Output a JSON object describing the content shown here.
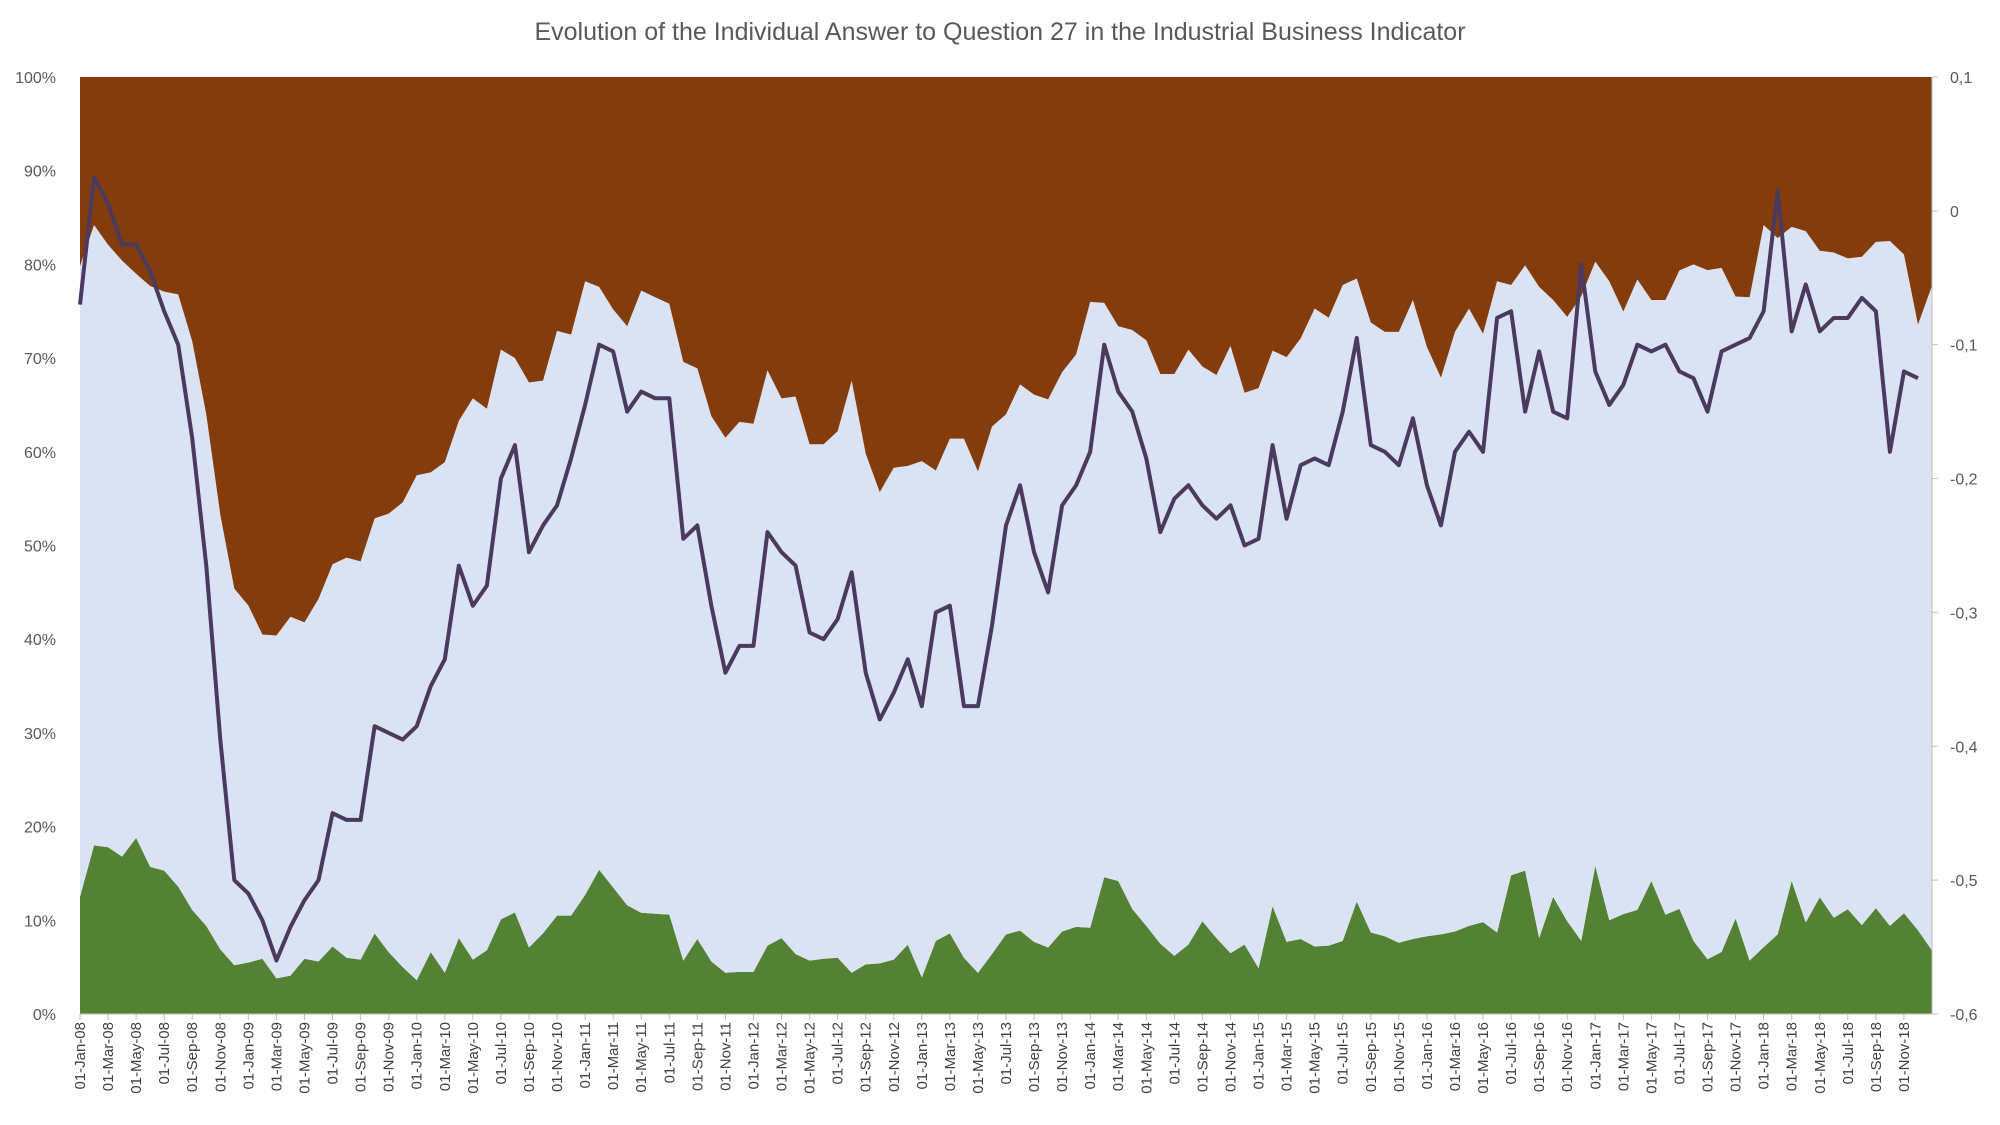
{
  "chart_data": {
    "type": "area",
    "title": "Evolution of the Individual Answer to Question 27 in the Industrial Business Indicator",
    "x_start": "01-Jan-08",
    "x_step": "month",
    "x_tick_labels": [
      "01-Jan-08",
      "01-Mar-08",
      "01-May-08",
      "01-Jul-08",
      "01-Sep-08",
      "01-Nov-08",
      "01-Jan-09",
      "01-Mar-09",
      "01-May-09",
      "01-Jul-09",
      "01-Sep-09",
      "01-Nov-09",
      "01-Jan-10",
      "01-Mar-10",
      "01-May-10",
      "01-Jul-10",
      "01-Sep-10",
      "01-Nov-10",
      "01-Jan-11",
      "01-Mar-11",
      "01-May-11",
      "01-Jul-11",
      "01-Sep-11",
      "01-Nov-11",
      "01-Jan-12",
      "01-Mar-12",
      "01-May-12",
      "01-Jul-12",
      "01-Sep-12",
      "01-Nov-12",
      "01-Jan-13",
      "01-Mar-13",
      "01-May-13",
      "01-Jul-13",
      "01-Sep-13",
      "01-Nov-13",
      "01-Jan-14",
      "01-Mar-14",
      "01-May-14",
      "01-Jul-14",
      "01-Sep-14",
      "01-Nov-14",
      "01-Jan-15",
      "01-Mar-15",
      "01-May-15",
      "01-Jul-15",
      "01-Sep-15",
      "01-Nov-15",
      "01-Jan-16",
      "01-Mar-16",
      "01-May-16",
      "01-Jul-16",
      "01-Sep-16",
      "01-Nov-16",
      "01-Jan-17",
      "01-Mar-17",
      "01-May-17",
      "01-Jul-17",
      "01-Sep-17",
      "01-Nov-17",
      "01-Jan-18",
      "01-Mar-18",
      "01-May-18",
      "01-Jul-18",
      "01-Sep-18",
      "01-Nov-18"
    ],
    "y_left": {
      "min": 0,
      "max": 100,
      "step": 10,
      "tick_labels": [
        "0%",
        "10%",
        "20%",
        "30%",
        "40%",
        "50%",
        "60%",
        "70%",
        "80%",
        "90%",
        "100%"
      ]
    },
    "y_right": {
      "min": -0.6,
      "max": 0.1,
      "step": 0.1,
      "tick_labels": [
        "-0,6",
        "-0,5",
        "-0,4",
        "-0,3",
        "-0,2",
        "-0,1",
        "0",
        "0,1"
      ]
    },
    "grid": false,
    "legend": "none",
    "series": [
      {
        "kind": "stacked-area",
        "axis": "left",
        "color": "#548235",
        "values": [
          12.5,
          18,
          17.8,
          16.8,
          18.8,
          15.7,
          15.3,
          13.6,
          11.1,
          9.4,
          6.9,
          5.2,
          5.5,
          5.9,
          3.8,
          4.1,
          5.9,
          5.6,
          7.2,
          6,
          5.8,
          8.6,
          6.6,
          5,
          3.6,
          6.6,
          4.4,
          8.1,
          5.8,
          6.8,
          10.1,
          10.4,
          7.1,
          8.6,
          10.5,
          10.5,
          12.7,
          15.4,
          13.5,
          11.6,
          10.8,
          10.7,
          10.6,
          5.7,
          8,
          5.6,
          4.4,
          4.5,
          4.5,
          7.3,
          8.1,
          6.4,
          5.7,
          5.9,
          6,
          4.4,
          5.3,
          5.4,
          5.8,
          7.4,
          3.9,
          7.8,
          8.6,
          6,
          4.3,
          6.4,
          8.5,
          8.9,
          7.7,
          7.1,
          8.8,
          9.3,
          9.2,
          14.6,
          14.2,
          11.2,
          9.4,
          7.5,
          6.2,
          7.4,
          9.9,
          8.1,
          6.5,
          7.4,
          4.9,
          11.5,
          7.7,
          8,
          7.2,
          7.3,
          7.8,
          12,
          8.7,
          8.3,
          7.6,
          8,
          8.3,
          8.5,
          8.8,
          9.4,
          9.8,
          8.7,
          14.8,
          15.3,
          8.1,
          12.5,
          9.9,
          7.8,
          15.8,
          10,
          10.6,
          10.8,
          14.2,
          10.6,
          11.2,
          7.8,
          5.9,
          6.5,
          10.4,
          5.7,
          7,
          8.6,
          14.2,
          9.5,
          12.5,
          10.2,
          11.2,
          9.5,
          11.3,
          9.4,
          9.6,
          9.4,
          6.9
        ]
      },
      {
        "kind": "stacked-area",
        "axis": "left",
        "color": "#dae3f3",
        "values": [
          67.3,
          66.2,
          64.3,
          63.6,
          60.2,
          62,
          61.8,
          63.2,
          60.7,
          54.6,
          46.4,
          40.2,
          38.1,
          34.6,
          36.6,
          38.3,
          35.9,
          38.7,
          40.8,
          42.7,
          42.5,
          44.3,
          46.8,
          49.6,
          53.9,
          51.2,
          54.5,
          55.2,
          59.9,
          57.8,
          60.8,
          56.8,
          60.3,
          59,
          62.4,
          62,
          65.5,
          62.2,
          61.7,
          61.8,
          66.4,
          65.8,
          65.2,
          63.9,
          60.9,
          58.2,
          57.1,
          58.7,
          58.5,
          61.4,
          57.6,
          59.5,
          55.1,
          54.9,
          56.2,
          63.2,
          54.5,
          50.3,
          52.5,
          51.1,
          55.1,
          50.2,
          52.8,
          55.4,
          52.4,
          56.3,
          55.5,
          58.3,
          58.4,
          58.5,
          59.7,
          61.1,
          66.8,
          61.3,
          59.2,
          61.8,
          62.5,
          60.8,
          62.1,
          63.5,
          59.2,
          60.1,
          64.8,
          58.9,
          61.9,
          59.3,
          62.4,
          64.1,
          68.1,
          67,
          70,
          66.5,
          65.1,
          64.5,
          65.2,
          68.2,
          62.9,
          59.4,
          64,
          65.9,
          62.8,
          69.5,
          63,
          64.6,
          69.5,
          63.7,
          64.5,
          68.8,
          64.5,
          68.2,
          64,
          65.4,
          62,
          65.6,
          68,
          72.2,
          74.2,
          71.7,
          67.7,
          70.8,
          75.6,
          75.2,
          69.8,
          71.8,
          69.2,
          70.5,
          69.6,
          71.4,
          71.1,
          73.1,
          62.8,
          68,
          72.3
        ]
      },
      {
        "kind": "stacked-area",
        "axis": "left",
        "color": "#843c0c",
        "values": [
          20.2,
          15.8,
          17.9,
          19.6,
          21,
          22.3,
          22.9,
          23.2,
          28.2,
          36,
          46.7,
          54.6,
          56.4,
          59.5,
          59.6,
          57.6,
          58.2,
          55.7,
          52,
          51.3,
          51.7,
          47.1,
          46.6,
          45.4,
          42.5,
          42.2,
          41.1,
          36.7,
          34.3,
          35.4,
          29.1,
          28.8,
          32.6,
          32.4,
          27.1,
          27.5,
          21.8,
          22.4,
          24.8,
          26.6,
          22.8,
          23.5,
          24.2,
          30.4,
          31.1,
          36.2,
          38.5,
          36.8,
          37,
          31.3,
          34.3,
          34.1,
          39.2,
          39.2,
          37.8,
          32.4,
          40.2,
          44.3,
          41.7,
          41.5,
          41,
          42,
          38.6,
          38.6,
          41.2,
          37.3,
          36,
          32.8,
          33.9,
          34.4,
          31.5,
          29.6,
          24,
          24.1,
          26.6,
          27,
          28.1,
          31.7,
          31.7,
          29.1,
          30.9,
          31.8,
          28.7,
          33.7,
          33.2,
          29.2,
          29.9,
          27.9,
          24.7,
          25.7,
          22.2,
          21.5,
          26.2,
          27.2,
          27.2,
          23.8,
          28.8,
          32.1,
          27.2,
          24.7,
          27.4,
          21.8,
          22.2,
          20.1,
          22.4,
          23.8,
          25.6,
          23.4,
          19.7,
          21.8,
          24.9,
          21,
          23.8,
          23.8,
          20.6,
          20,
          20.8,
          20,
          23.9,
          23.5,
          15.5,
          17.4,
          16,
          16,
          18.6,
          18.6,
          19.4,
          19.2,
          17.6,
          17.5,
          16.9,
          27.8,
          22.7,
          20.8
        ]
      },
      {
        "kind": "line",
        "axis": "right",
        "color": "#4b3a5e",
        "values": [
          -0.07,
          0.025,
          0.005,
          -0.025,
          -0.025,
          -0.045,
          -0.075,
          -0.1,
          -0.17,
          -0.265,
          -0.395,
          -0.5,
          -0.51,
          -0.53,
          -0.56,
          -0.535,
          -0.515,
          -0.5,
          -0.45,
          -0.455,
          -0.455,
          -0.385,
          -0.39,
          -0.395,
          -0.385,
          -0.355,
          -0.335,
          -0.265,
          -0.295,
          -0.28,
          -0.2,
          -0.175,
          -0.255,
          -0.235,
          -0.22,
          -0.185,
          -0.145,
          -0.1,
          -0.105,
          -0.15,
          -0.135,
          -0.14,
          -0.14,
          -0.245,
          -0.235,
          -0.295,
          -0.345,
          -0.325,
          -0.325,
          -0.24,
          -0.255,
          -0.265,
          -0.315,
          -0.32,
          -0.305,
          -0.27,
          -0.345,
          -0.38,
          -0.36,
          -0.335,
          -0.37,
          -0.3,
          -0.295,
          -0.37,
          -0.37,
          -0.31,
          -0.235,
          -0.205,
          -0.255,
          -0.285,
          -0.22,
          -0.205,
          -0.18,
          -0.1,
          -0.135,
          -0.15,
          -0.185,
          -0.24,
          -0.215,
          -0.205,
          -0.22,
          -0.23,
          -0.22,
          -0.25,
          -0.245,
          -0.175,
          -0.23,
          -0.19,
          -0.185,
          -0.19,
          -0.15,
          -0.095,
          -0.175,
          -0.18,
          -0.19,
          -0.155,
          -0.205,
          -0.235,
          -0.18,
          -0.165,
          -0.18,
          -0.08,
          -0.075,
          -0.15,
          -0.105,
          -0.15,
          -0.155,
          -0.04,
          -0.12,
          -0.145,
          -0.13,
          -0.1,
          -0.105,
          -0.1,
          -0.12,
          -0.125,
          -0.15,
          -0.105,
          -0.1,
          -0.095,
          -0.075,
          0.015,
          -0.09,
          -0.055,
          -0.09,
          -0.08,
          -0.08,
          -0.065,
          -0.075,
          -0.18,
          -0.12,
          -0.125
        ]
      }
    ]
  }
}
